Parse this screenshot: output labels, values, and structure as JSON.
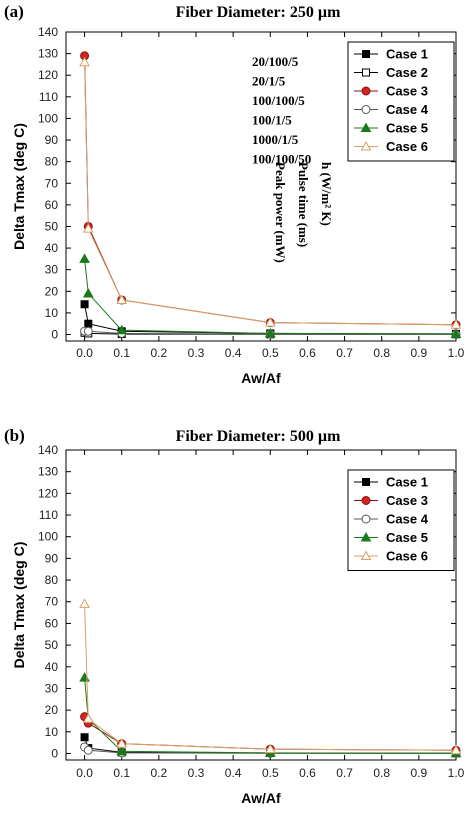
{
  "chart_data": [
    {
      "panel": "(a)",
      "type": "line",
      "title": "Fiber Diameter: 250 µm",
      "xlabel": "Aw/Af",
      "ylabel": "Delta Tmax (deg C)",
      "xlim": [
        -0.05,
        1.0
      ],
      "ylim": [
        -3,
        140
      ],
      "xticks": [
        "0.0",
        "0.1",
        "0.2",
        "0.3",
        "0.4",
        "0.5",
        "0.6",
        "0.7",
        "0.8",
        "0.9",
        "1.0"
      ],
      "yticks": [
        "0",
        "10",
        "20",
        "30",
        "40",
        "50",
        "60",
        "70",
        "80",
        "90",
        "100",
        "110",
        "120",
        "130",
        "140"
      ],
      "legend_position": "top-right",
      "params": {
        "rows": [
          "20/100/5",
          "20/1/5",
          "100/100/5",
          "100/1/5",
          "1000/1/5",
          "100/100/50"
        ],
        "columns": [
          "h (W/m² K)",
          "Pulse time (ms)",
          "Peak power (mW)"
        ]
      },
      "series": [
        {
          "name": "Case 1",
          "marker": "square",
          "filled": true,
          "color": "#000000",
          "x": [
            0.0,
            0.01,
            0.1,
            0.5,
            1.0
          ],
          "y": [
            14,
            5,
            1.5,
            0.5,
            0.3
          ]
        },
        {
          "name": "Case 2",
          "marker": "square",
          "filled": false,
          "color": "#000000",
          "x": [
            0.0,
            0.01,
            0.1,
            0.5,
            1.0
          ],
          "y": [
            0.8,
            0.5,
            0.2,
            0.1,
            0.1
          ]
        },
        {
          "name": "Case 3",
          "marker": "circle",
          "filled": true,
          "color": "#d62222",
          "x": [
            0.0,
            0.01,
            0.1,
            0.5,
            1.0
          ],
          "y": [
            129,
            50,
            16,
            5.5,
            4.5
          ]
        },
        {
          "name": "Case 4",
          "marker": "circle",
          "filled": false,
          "color": "#555555",
          "x": [
            0.0,
            0.01,
            0.1,
            0.5,
            1.0
          ],
          "y": [
            1.5,
            1.5,
            0.5,
            0.2,
            0.1
          ]
        },
        {
          "name": "Case 5",
          "marker": "triangle",
          "filled": true,
          "color": "#1a7a1a",
          "x": [
            0.0,
            0.01,
            0.1,
            0.5,
            1.0
          ],
          "y": [
            35,
            19,
            2,
            0.5,
            0.3
          ]
        },
        {
          "name": "Case 6",
          "marker": "triangle",
          "filled": false,
          "color": "#d9a066",
          "x": [
            0.0,
            0.01,
            0.1,
            0.5,
            1.0
          ],
          "y": [
            126,
            49,
            16,
            5.5,
            4.5
          ]
        }
      ]
    },
    {
      "panel": "(b)",
      "type": "line",
      "title": "Fiber Diameter: 500 µm",
      "xlabel": "Aw/Af",
      "ylabel": "Delta Tmax (deg C)",
      "xlim": [
        -0.05,
        1.0
      ],
      "ylim": [
        -3,
        140
      ],
      "xticks": [
        "0.0",
        "0.1",
        "0.2",
        "0.3",
        "0.4",
        "0.5",
        "0.6",
        "0.7",
        "0.8",
        "0.9",
        "1.0"
      ],
      "yticks": [
        "0",
        "10",
        "20",
        "30",
        "40",
        "50",
        "60",
        "70",
        "80",
        "90",
        "100",
        "110",
        "120",
        "130",
        "140"
      ],
      "legend_position": "top-right",
      "series": [
        {
          "name": "Case 1",
          "marker": "square",
          "filled": true,
          "color": "#000000",
          "x": [
            0.0,
            0.01,
            0.1,
            0.5,
            1.0
          ],
          "y": [
            7.5,
            2.5,
            0.5,
            0.2,
            0.1
          ]
        },
        {
          "name": "Case 3",
          "marker": "circle",
          "filled": true,
          "color": "#d62222",
          "x": [
            0.0,
            0.01,
            0.1,
            0.5,
            1.0
          ],
          "y": [
            17,
            14,
            4.5,
            2,
            1.5
          ]
        },
        {
          "name": "Case 4",
          "marker": "circle",
          "filled": false,
          "color": "#555555",
          "x": [
            0.0,
            0.01,
            0.1,
            0.5,
            1.0
          ],
          "y": [
            3,
            1.5,
            0.3,
            0.1,
            0.1
          ]
        },
        {
          "name": "Case 5",
          "marker": "triangle",
          "filled": true,
          "color": "#1a7a1a",
          "x": [
            0.0,
            0.01,
            0.1,
            0.5,
            1.0
          ],
          "y": [
            35,
            16,
            1,
            0.3,
            0.1
          ]
        },
        {
          "name": "Case 6",
          "marker": "triangle",
          "filled": false,
          "color": "#d9a066",
          "x": [
            0.0,
            0.01,
            0.1,
            0.5,
            1.0
          ],
          "y": [
            69,
            16,
            4.5,
            2,
            1.5
          ]
        }
      ]
    }
  ]
}
